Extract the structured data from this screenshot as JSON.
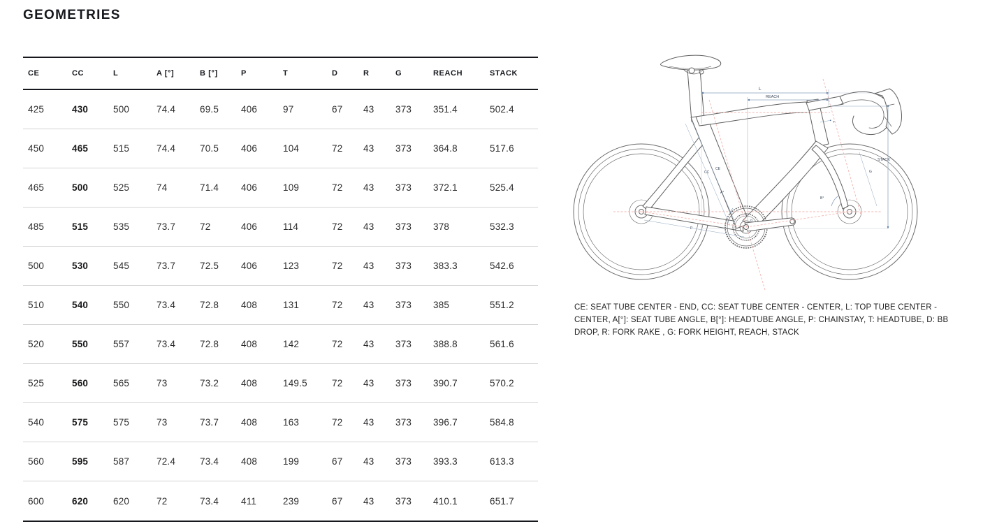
{
  "header": {
    "title": "GEOMETRIES"
  },
  "table": {
    "columns": [
      "CE",
      "CC",
      "L",
      "A [°]",
      "B [°]",
      "P",
      "T",
      "D",
      "R",
      "G",
      "REACH",
      "STACK"
    ],
    "bold_column": "CC",
    "rows": [
      [
        "425",
        "430",
        "500",
        "74.4",
        "69.5",
        "406",
        "97",
        "67",
        "43",
        "373",
        "351.4",
        "502.4"
      ],
      [
        "450",
        "465",
        "515",
        "74.4",
        "70.5",
        "406",
        "104",
        "72",
        "43",
        "373",
        "364.8",
        "517.6"
      ],
      [
        "465",
        "500",
        "525",
        "74",
        "71.4",
        "406",
        "109",
        "72",
        "43",
        "373",
        "372.1",
        "525.4"
      ],
      [
        "485",
        "515",
        "535",
        "73.7",
        "72",
        "406",
        "114",
        "72",
        "43",
        "373",
        "378",
        "532.3"
      ],
      [
        "500",
        "530",
        "545",
        "73.7",
        "72.5",
        "406",
        "123",
        "72",
        "43",
        "373",
        "383.3",
        "542.6"
      ],
      [
        "510",
        "540",
        "550",
        "73.4",
        "72.8",
        "408",
        "131",
        "72",
        "43",
        "373",
        "385",
        "551.2"
      ],
      [
        "520",
        "550",
        "557",
        "73.4",
        "72.8",
        "408",
        "142",
        "72",
        "43",
        "373",
        "388.8",
        "561.6"
      ],
      [
        "525",
        "560",
        "565",
        "73",
        "73.2",
        "408",
        "149.5",
        "72",
        "43",
        "373",
        "390.7",
        "570.2"
      ],
      [
        "540",
        "575",
        "575",
        "73",
        "73.7",
        "408",
        "163",
        "72",
        "43",
        "373",
        "396.7",
        "584.8"
      ],
      [
        "560",
        "595",
        "587",
        "72.4",
        "73.4",
        "408",
        "199",
        "67",
        "43",
        "373",
        "393.3",
        "613.3"
      ],
      [
        "600",
        "620",
        "620",
        "72",
        "73.4",
        "411",
        "239",
        "67",
        "43",
        "373",
        "410.1",
        "651.7"
      ]
    ]
  },
  "figure": {
    "type": "bike-geometry-diagram",
    "labels": {
      "l": "L",
      "reach": "REACH",
      "stack": "STACK",
      "cc": "CC",
      "ce": "CE",
      "a": "A°",
      "b": "B°",
      "p": "P",
      "d": "D",
      "g": "G",
      "t": "T"
    },
    "colors": {
      "frame": "#5f5f5f",
      "dimension": "#8fa6bd",
      "dimension_dark": "#3f6690",
      "guide_red": "#f2b6b0",
      "guide_box": "#ccd6e0"
    }
  },
  "legend": {
    "text": "CE: SEAT TUBE CENTER - END, CC: SEAT TUBE CENTER - CENTER, L: TOP TUBE CENTER - CENTER, A[°]: SEAT TUBE ANGLE, B[°]: HEADTUBE ANGLE, P: CHAINSTAY, T: HEADTUBE, D: BB DROP, R: FORK RAKE , G: FORK HEIGHT, REACH, STACK"
  }
}
